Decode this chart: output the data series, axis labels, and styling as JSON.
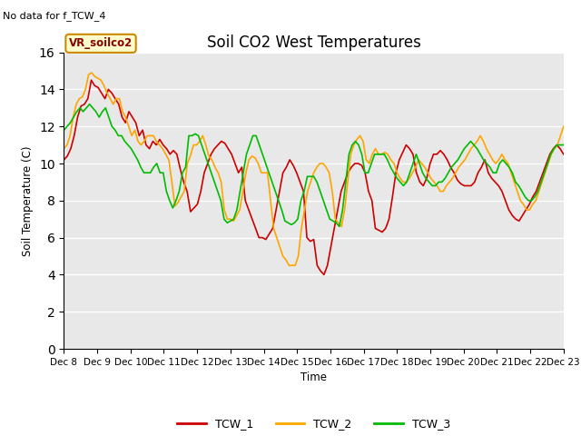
{
  "title": "Soil CO2 West Temperatures",
  "ylabel": "Soil Temperature (C)",
  "xlabel": "Time",
  "no_data_text": "No data for f_TCW_4",
  "vr_label": "VR_soilco2",
  "ylim": [
    0,
    16
  ],
  "yticks": [
    0,
    2,
    4,
    6,
    8,
    10,
    12,
    14,
    16
  ],
  "xtick_labels": [
    "Dec 8",
    "Dec 9",
    "Dec 10",
    "Dec 11",
    "Dec 12",
    "Dec 13",
    "Dec 14",
    "Dec 15",
    "Dec 16",
    "Dec 17",
    "Dec 18",
    "Dec 19",
    "Dec 20",
    "Dec 21",
    "Dec 22",
    "Dec 23"
  ],
  "bg_color": "#e8e8e8",
  "tcw1_color": "#cc0000",
  "tcw2_color": "#ffa500",
  "tcw3_color": "#00bb00",
  "legend_entries": [
    "TCW_1",
    "TCW_2",
    "TCW_3"
  ],
  "tcw1": [
    10.2,
    10.4,
    10.8,
    11.5,
    12.5,
    13.1,
    13.2,
    13.5,
    14.5,
    14.2,
    14.1,
    13.8,
    13.5,
    14.0,
    13.8,
    13.5,
    13.2,
    12.5,
    12.2,
    12.8,
    12.5,
    12.2,
    11.5,
    11.8,
    11.0,
    10.8,
    11.2,
    11.0,
    11.3,
    11.0,
    10.8,
    10.5,
    10.7,
    10.5,
    9.7,
    9.0,
    8.5,
    7.4,
    7.6,
    7.8,
    8.5,
    9.5,
    10.0,
    10.5,
    10.8,
    11.0,
    11.2,
    11.1,
    10.8,
    10.5,
    10.0,
    9.5,
    9.8,
    8.0,
    7.5,
    7.0,
    6.5,
    6.0,
    6.0,
    5.9,
    6.2,
    6.5,
    7.5,
    8.5,
    9.5,
    9.8,
    10.2,
    9.9,
    9.5,
    9.0,
    8.5,
    6.0,
    5.8,
    5.9,
    4.5,
    4.2,
    4.0,
    4.5,
    5.5,
    6.5,
    7.5,
    8.5,
    9.0,
    9.5,
    9.8,
    10.0,
    10.0,
    9.9,
    9.5,
    8.5,
    8.0,
    6.5,
    6.4,
    6.3,
    6.5,
    7.0,
    8.2,
    9.5,
    10.2,
    10.6,
    11.0,
    10.8,
    10.5,
    9.5,
    9.0,
    8.8,
    9.2,
    10.0,
    10.5,
    10.5,
    10.7,
    10.5,
    10.2,
    9.8,
    9.5,
    9.1,
    8.9,
    8.8,
    8.8,
    8.8,
    9.0,
    9.5,
    9.8,
    10.2,
    9.5,
    9.2,
    9.0,
    8.8,
    8.5,
    8.0,
    7.5,
    7.2,
    7.0,
    6.9,
    7.2,
    7.5,
    7.8,
    8.2,
    8.5,
    9.0,
    9.5,
    10.0,
    10.5,
    10.8,
    11.0,
    10.8,
    10.5
  ],
  "tcw2": [
    10.8,
    11.0,
    11.5,
    12.5,
    13.2,
    13.5,
    13.6,
    14.0,
    14.8,
    14.9,
    14.7,
    14.6,
    14.5,
    14.2,
    13.8,
    13.5,
    13.2,
    13.5,
    13.5,
    12.8,
    12.5,
    12.0,
    11.5,
    11.8,
    11.2,
    11.0,
    11.2,
    11.5,
    11.5,
    11.5,
    11.2,
    11.0,
    10.8,
    10.5,
    10.2,
    9.0,
    7.7,
    7.9,
    8.2,
    8.5,
    10.0,
    10.4,
    11.0,
    11.0,
    11.2,
    11.5,
    11.0,
    10.4,
    10.2,
    9.8,
    9.5,
    9.0,
    7.5,
    7.0,
    7.0,
    6.9,
    7.2,
    7.5,
    8.5,
    9.5,
    10.2,
    10.4,
    10.3,
    10.0,
    9.5,
    9.5,
    9.5,
    8.0,
    6.5,
    6.0,
    5.5,
    5.0,
    4.8,
    4.5,
    4.5,
    4.5,
    5.0,
    6.5,
    7.5,
    8.5,
    9.0,
    9.5,
    9.8,
    10.0,
    10.0,
    9.8,
    9.5,
    8.5,
    7.0,
    6.8,
    6.6,
    7.5,
    9.0,
    10.5,
    11.0,
    11.3,
    11.5,
    11.2,
    10.2,
    10.0,
    10.5,
    10.8,
    10.5,
    10.5,
    10.6,
    10.5,
    10.2,
    10.0,
    9.5,
    9.2,
    9.0,
    9.0,
    9.2,
    9.5,
    9.8,
    10.2,
    10.0,
    9.8,
    9.5,
    9.2,
    9.0,
    8.8,
    8.5,
    8.5,
    8.8,
    9.0,
    9.2,
    9.5,
    9.8,
    10.0,
    10.2,
    10.5,
    10.8,
    11.0,
    11.2,
    11.5,
    11.2,
    10.8,
    10.5,
    10.2,
    10.0,
    10.2,
    10.5,
    10.2,
    10.0,
    9.5,
    9.0,
    8.5,
    8.0,
    7.8,
    7.5,
    7.5,
    7.8,
    8.0,
    8.5,
    9.0,
    9.5,
    10.0,
    10.5,
    10.8,
    11.0,
    11.5,
    12.0
  ],
  "tcw3": [
    11.8,
    12.0,
    12.2,
    12.5,
    12.8,
    13.0,
    12.8,
    13.0,
    13.2,
    13.0,
    12.8,
    12.5,
    12.8,
    13.0,
    12.5,
    12.0,
    11.8,
    11.5,
    11.5,
    11.2,
    11.0,
    10.8,
    10.5,
    10.2,
    9.8,
    9.5,
    9.5,
    9.5,
    9.8,
    10.0,
    9.5,
    9.5,
    8.5,
    8.0,
    7.6,
    8.0,
    8.5,
    9.5,
    9.8,
    11.5,
    11.5,
    11.6,
    11.5,
    11.0,
    10.5,
    10.0,
    9.5,
    9.0,
    8.5,
    8.0,
    7.0,
    6.8,
    6.9,
    7.0,
    7.5,
    8.5,
    9.5,
    10.5,
    11.0,
    11.5,
    11.5,
    11.0,
    10.5,
    10.0,
    9.5,
    9.0,
    8.5,
    8.0,
    7.5,
    6.9,
    6.8,
    6.7,
    6.8,
    7.0,
    8.0,
    8.5,
    9.3,
    9.3,
    9.3,
    9.0,
    8.5,
    8.0,
    7.5,
    7.0,
    6.9,
    6.8,
    6.6,
    7.5,
    9.0,
    10.5,
    11.0,
    11.2,
    11.0,
    10.5,
    9.5,
    9.5,
    10.0,
    10.5,
    10.5,
    10.5,
    10.5,
    10.2,
    9.8,
    9.5,
    9.2,
    9.0,
    8.8,
    9.0,
    9.5,
    10.0,
    10.5,
    10.0,
    9.5,
    9.2,
    9.0,
    8.8,
    8.8,
    9.0,
    9.0,
    9.2,
    9.5,
    9.8,
    10.0,
    10.2,
    10.5,
    10.8,
    11.0,
    11.2,
    11.0,
    10.8,
    10.5,
    10.2,
    10.0,
    9.8,
    9.5,
    9.5,
    10.0,
    10.2,
    10.0,
    9.8,
    9.5,
    9.0,
    8.8,
    8.5,
    8.2,
    8.0,
    8.0,
    8.2,
    8.5,
    9.0,
    9.5,
    10.0,
    10.5,
    10.8,
    11.0,
    11.0,
    11.0
  ]
}
